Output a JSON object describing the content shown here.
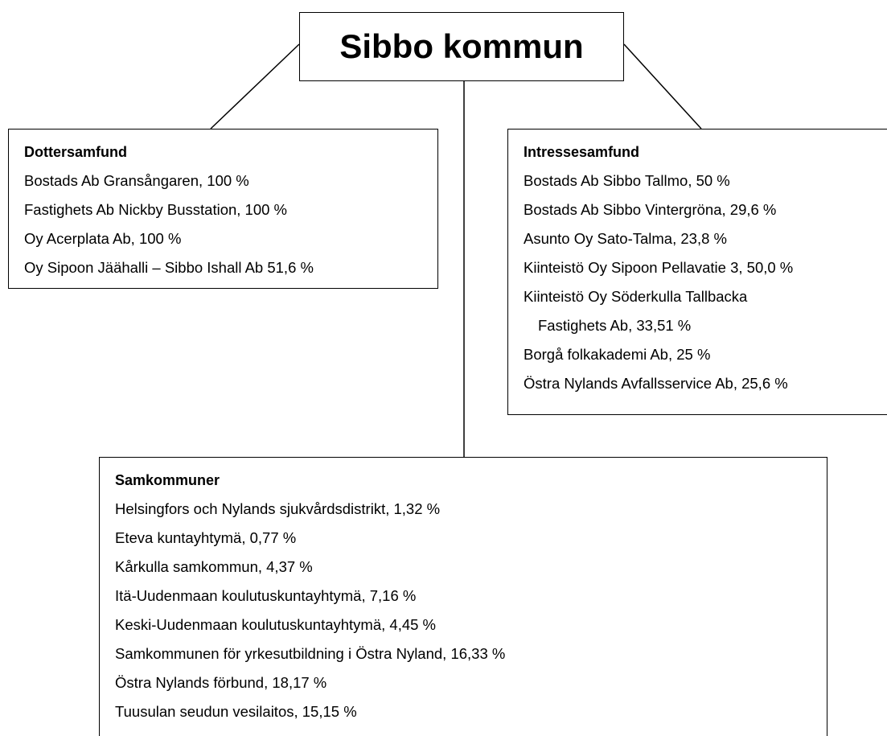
{
  "title": "Sibbo kommun",
  "groups": [
    {
      "title": "Dottersamfund",
      "items": [
        "Bostads Ab Gransångaren, 100 %",
        "Fastighets Ab Nickby Busstation, 100 %",
        "Oy Acerplata Ab, 100 %",
        "Oy Sipoon Jäähalli – Sibbo Ishall Ab 51,6 %"
      ]
    },
    {
      "title": "Intressesamfund",
      "items": [
        "Bostads Ab Sibbo Tallmo, 50 %",
        "Bostads Ab Sibbo Vintergröna, 29,6 %",
        "Asunto Oy Sato-Talma, 23,8 %",
        "Kiinteistö Oy Sipoon Pellavatie 3, 50,0 %",
        [
          "Kiinteistö Oy Söderkulla Tallbacka",
          "Fastighets Ab, 33,51 %"
        ],
        "Borgå folkakademi Ab, 25 %",
        "Östra Nylands Avfallsservice Ab, 25,6 %"
      ]
    },
    {
      "title": "Samkommuner",
      "items": [
        "Helsingfors och Nylands sjukvårdsdistrikt, 1,32 %",
        "Eteva kuntayhtymä, 0,77 %",
        "Kårkulla samkommun, 4,37 %",
        "Itä-Uudenmaan koulutuskuntayhtymä, 7,16 %",
        "Keski-Uudenmaan koulutuskuntayhtymä, 4,45 %",
        "Samkommunen för yrkesutbildning i Östra Nyland, 16,33 %",
        "Östra Nylands förbund, 18,17 %",
        "Tuusulan seudun vesilaitos, 15,15 %"
      ]
    }
  ]
}
